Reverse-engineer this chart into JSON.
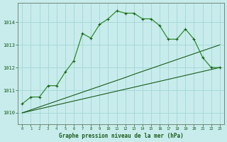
{
  "title": "Graphe pression niveau de la mer (hPa)",
  "background_color": "#c8ecec",
  "grid_color": "#a8d8d8",
  "line_color_dark": "#1a5c1a",
  "line_color_medium": "#2d8c2d",
  "xlim": [
    -0.5,
    23.5
  ],
  "ylim": [
    1009.5,
    1014.85
  ],
  "yticks": [
    1010,
    1011,
    1012,
    1013,
    1014
  ],
  "xticks": [
    0,
    1,
    2,
    3,
    4,
    5,
    6,
    7,
    8,
    9,
    10,
    11,
    12,
    13,
    14,
    15,
    16,
    17,
    18,
    19,
    20,
    21,
    22,
    23
  ],
  "series_main": [
    1010.4,
    1010.7,
    1010.7,
    1011.2,
    1011.2,
    1011.8,
    1012.3,
    1013.5,
    1013.3,
    1013.9,
    1014.15,
    1014.5,
    1014.4,
    1014.4,
    1014.15,
    1014.15,
    1013.85,
    1013.25,
    1013.25,
    1013.7,
    1013.25,
    1012.45,
    1012.0,
    1012.0
  ],
  "series_upper_straight": [
    1010.0,
    1010.13,
    1010.26,
    1010.39,
    1010.52,
    1010.65,
    1010.78,
    1010.91,
    1011.04,
    1011.17,
    1011.3,
    1011.43,
    1011.56,
    1011.7,
    1011.83,
    1011.96,
    1012.09,
    1012.22,
    1012.35,
    1012.48,
    1012.61,
    1012.74,
    1012.87,
    1013.0
  ],
  "series_lower_straight": [
    1010.0,
    1010.087,
    1010.174,
    1010.261,
    1010.348,
    1010.435,
    1010.522,
    1010.609,
    1010.696,
    1010.783,
    1010.87,
    1010.957,
    1011.044,
    1011.131,
    1011.218,
    1011.305,
    1011.392,
    1011.478,
    1011.565,
    1011.652,
    1011.739,
    1011.826,
    1011.913,
    1012.0
  ]
}
